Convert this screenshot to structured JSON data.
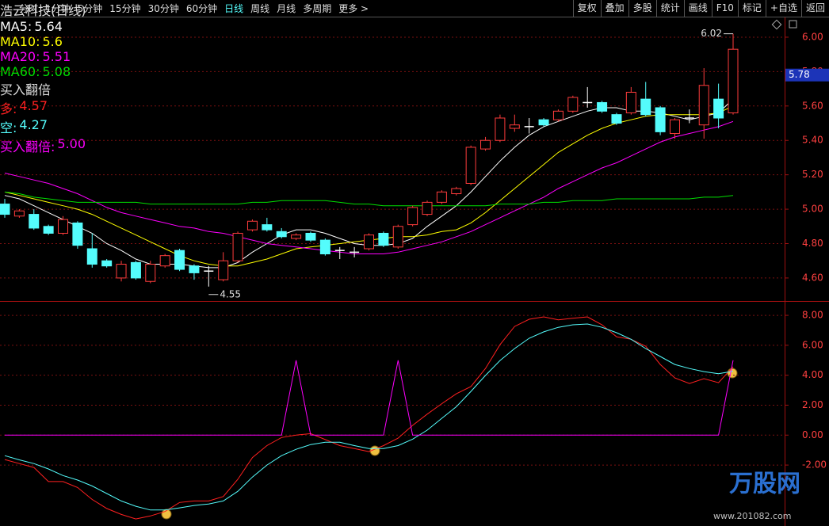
{
  "toolbar": {
    "left": [
      "分时",
      "1分钟",
      "5分钟",
      "15分钟",
      "30分钟",
      "60分钟",
      "日线",
      "周线",
      "月线",
      "多周期",
      "更多 >"
    ],
    "right": [
      "复权",
      "叠加",
      "多股",
      "统计",
      "画线",
      "F10",
      "标记",
      "+自选",
      "返回"
    ]
  },
  "chart_data": [
    {
      "type": "candlestick",
      "title": "浩云科技(日线)",
      "up_color": "#ff3c3c",
      "down_color": "#54fcfc",
      "flat_color": "#ffffff",
      "grid": true,
      "open": [
        5.03,
        4.96,
        4.97,
        4.9,
        4.86,
        4.92,
        4.77,
        4.7,
        4.6,
        4.69,
        4.58,
        4.67,
        4.76,
        4.67,
        4.64,
        4.59,
        4.7,
        4.88,
        4.91,
        4.87,
        4.83,
        4.86,
        4.82,
        4.76,
        4.75,
        4.77,
        4.86,
        4.78,
        4.91,
        4.97,
        5.04,
        5.09,
        5.15,
        5.35,
        5.4,
        5.47,
        5.48,
        5.52,
        5.52,
        5.57,
        5.62,
        5.62,
        5.55,
        5.56,
        5.64,
        5.59,
        5.44,
        5.53,
        5.49,
        5.64,
        5.56
      ],
      "high": [
        5.06,
        5.0,
        5.0,
        4.91,
        4.96,
        4.93,
        4.86,
        4.71,
        4.7,
        4.7,
        4.7,
        4.74,
        4.77,
        4.68,
        4.67,
        4.75,
        4.87,
        4.94,
        4.95,
        4.89,
        4.86,
        4.87,
        4.83,
        4.78,
        4.78,
        4.86,
        4.87,
        4.91,
        5.02,
        5.05,
        5.11,
        5.13,
        5.37,
        5.42,
        5.55,
        5.55,
        5.53,
        5.53,
        5.58,
        5.66,
        5.71,
        5.63,
        5.56,
        5.71,
        5.74,
        5.6,
        5.53,
        5.58,
        5.82,
        5.73,
        6.02
      ],
      "low": [
        4.95,
        4.95,
        4.88,
        4.85,
        4.85,
        4.77,
        4.66,
        4.66,
        4.58,
        4.59,
        4.57,
        4.66,
        4.64,
        4.59,
        4.55,
        4.58,
        4.69,
        4.87,
        4.87,
        4.83,
        4.82,
        4.81,
        4.73,
        4.71,
        4.72,
        4.76,
        4.78,
        4.77,
        4.9,
        4.96,
        5.03,
        5.08,
        5.14,
        5.34,
        5.39,
        5.45,
        5.44,
        5.48,
        5.51,
        5.56,
        5.59,
        5.56,
        5.49,
        5.55,
        5.54,
        5.43,
        5.41,
        5.5,
        5.41,
        5.47,
        5.55
      ],
      "close": [
        4.97,
        4.99,
        4.89,
        4.86,
        4.94,
        4.79,
        4.68,
        4.67,
        4.68,
        4.6,
        4.68,
        4.73,
        4.65,
        4.63,
        4.64,
        4.7,
        4.86,
        4.93,
        4.88,
        4.84,
        4.85,
        4.82,
        4.74,
        4.76,
        4.75,
        4.85,
        4.79,
        4.9,
        5.01,
        5.04,
        5.1,
        5.12,
        5.36,
        5.4,
        5.53,
        5.49,
        5.48,
        5.49,
        5.57,
        5.65,
        5.62,
        5.57,
        5.5,
        5.68,
        5.55,
        5.45,
        5.52,
        5.53,
        5.72,
        5.53,
        5.93
      ],
      "series": [
        {
          "name": "MA5:",
          "color": "#ffffff",
          "values": [
            5.08,
            5.06,
            5.02,
            4.98,
            4.94,
            4.9,
            4.86,
            4.8,
            4.76,
            4.71,
            4.68,
            4.68,
            4.68,
            4.67,
            4.66,
            4.66,
            4.69,
            4.75,
            4.8,
            4.85,
            4.88,
            4.88,
            4.86,
            4.83,
            4.8,
            4.79,
            4.79,
            4.8,
            4.83,
            4.9,
            4.96,
            5.02,
            5.1,
            5.19,
            5.28,
            5.36,
            5.43,
            5.48,
            5.51,
            5.54,
            5.57,
            5.59,
            5.59,
            5.57,
            5.57,
            5.56,
            5.54,
            5.52,
            5.54,
            5.56,
            5.64
          ]
        },
        {
          "name": "MA10:",
          "color": "#ffff00",
          "values": [
            5.1,
            5.08,
            5.06,
            5.04,
            5.02,
            5.0,
            4.97,
            4.93,
            4.89,
            4.85,
            4.81,
            4.77,
            4.73,
            4.7,
            4.68,
            4.67,
            4.67,
            4.69,
            4.71,
            4.74,
            4.77,
            4.78,
            4.79,
            4.8,
            4.81,
            4.82,
            4.83,
            4.84,
            4.84,
            4.85,
            4.87,
            4.88,
            4.92,
            4.98,
            5.05,
            5.12,
            5.19,
            5.26,
            5.33,
            5.38,
            5.43,
            5.47,
            5.5,
            5.52,
            5.54,
            5.55,
            5.55,
            5.55,
            5.55,
            5.56,
            5.6
          ]
        },
        {
          "name": "MA20:",
          "color": "#ff00ff",
          "values": [
            5.21,
            5.19,
            5.17,
            5.15,
            5.12,
            5.09,
            5.05,
            5.01,
            4.98,
            4.96,
            4.94,
            4.92,
            4.9,
            4.89,
            4.87,
            4.86,
            4.84,
            4.82,
            4.8,
            4.79,
            4.78,
            4.77,
            4.76,
            4.75,
            4.74,
            4.74,
            4.74,
            4.75,
            4.77,
            4.79,
            4.81,
            4.84,
            4.87,
            4.91,
            4.95,
            4.99,
            5.03,
            5.07,
            5.12,
            5.16,
            5.2,
            5.24,
            5.27,
            5.31,
            5.35,
            5.39,
            5.42,
            5.44,
            5.46,
            5.48,
            5.51
          ]
        },
        {
          "name": "MA60:",
          "color": "#00e000",
          "values": [
            5.1,
            5.09,
            5.07,
            5.06,
            5.05,
            5.04,
            5.04,
            5.04,
            5.04,
            5.04,
            5.03,
            5.03,
            5.03,
            5.03,
            5.03,
            5.03,
            5.03,
            5.04,
            5.04,
            5.05,
            5.05,
            5.05,
            5.05,
            5.04,
            5.03,
            5.03,
            5.02,
            5.02,
            5.02,
            5.02,
            5.02,
            5.02,
            5.02,
            5.02,
            5.03,
            5.03,
            5.03,
            5.04,
            5.04,
            5.05,
            5.05,
            5.05,
            5.06,
            5.06,
            5.06,
            5.06,
            5.06,
            5.06,
            5.07,
            5.07,
            5.08
          ]
        }
      ],
      "ylim": [
        4.466,
        6.115
      ],
      "yticks": [
        {
          "value": 4.6,
          "label": "4.60"
        },
        {
          "value": 4.8,
          "label": "4.80"
        },
        {
          "value": 5.0,
          "label": "5.00"
        },
        {
          "value": 5.2,
          "label": "5.20"
        },
        {
          "value": 5.4,
          "label": "5.40"
        },
        {
          "value": 5.6,
          "label": "5.60"
        },
        {
          "value": 5.8,
          "label": "5.80"
        },
        {
          "value": 6.0,
          "label": "6.00"
        }
      ],
      "price_marker": 5.78
    },
    {
      "type": "line",
      "title": "买入翻倍",
      "grid": true,
      "series": [
        {
          "name": "多:",
          "color": "#ff2020",
          "values": [
            -1.63,
            -1.9,
            -2.16,
            -3.1,
            -3.1,
            -3.5,
            -4.3,
            -4.9,
            -5.3,
            -5.6,
            -5.4,
            -5.1,
            -4.5,
            -4.4,
            -4.4,
            -4.1,
            -2.95,
            -1.5,
            -0.7,
            -0.16,
            0,
            0.1,
            -0.3,
            -0.7,
            -0.9,
            -1.1,
            -0.7,
            -0.2,
            0.65,
            1.4,
            2.1,
            2.76,
            3.24,
            4.45,
            6.04,
            7.26,
            7.74,
            7.9,
            7.7,
            7.8,
            7.9,
            7.37,
            6.57,
            6.4,
            5.94,
            4.72,
            3.82,
            3.45,
            3.77,
            3.5,
            4.57
          ]
        },
        {
          "name": "空:",
          "color": "#54fcfc",
          "values": [
            -1.37,
            -1.65,
            -1.9,
            -2.26,
            -2.7,
            -3.0,
            -3.4,
            -3.9,
            -4.4,
            -4.75,
            -5.0,
            -5.0,
            -4.86,
            -4.7,
            -4.6,
            -4.4,
            -3.75,
            -2.8,
            -2.0,
            -1.37,
            -0.95,
            -0.63,
            -0.48,
            -0.48,
            -0.7,
            -0.9,
            -0.9,
            -0.7,
            -0.27,
            0.33,
            1.12,
            1.9,
            2.92,
            3.98,
            4.98,
            5.78,
            6.47,
            6.9,
            7.2,
            7.37,
            7.42,
            7.2,
            6.84,
            6.4,
            5.78,
            5.25,
            4.72,
            4.45,
            4.24,
            4.1,
            4.27
          ]
        },
        {
          "name": "买入翻倍:",
          "color": "#ff00ff",
          "values": [
            0,
            0,
            0,
            0,
            0,
            0,
            0,
            0,
            0,
            0,
            0,
            0,
            0,
            0,
            0,
            0,
            0,
            0,
            0,
            0,
            5,
            0,
            0,
            0,
            0,
            0,
            0,
            5,
            0,
            0,
            0,
            0,
            0,
            0,
            0,
            0,
            0,
            0,
            0,
            0,
            0,
            0,
            0,
            0,
            0,
            0,
            0,
            0,
            0,
            0,
            5
          ],
          "value_labels": [
            null,
            null,
            null,
            null,
            null,
            null,
            null,
            null,
            null,
            null,
            null,
            null,
            null,
            null,
            null,
            null,
            null,
            null,
            null,
            null,
            null,
            null,
            null,
            null,
            null,
            null,
            null,
            null,
            null,
            null,
            null,
            null,
            null,
            null,
            null,
            null,
            null,
            null,
            null,
            null,
            null,
            null,
            null,
            null,
            null,
            null,
            null,
            null,
            null,
            null,
            "5.00"
          ]
        }
      ],
      "ylim": [
        -6.07,
        8.85
      ],
      "yticks": [
        {
          "value": -2,
          "label": "-2.00"
        },
        {
          "value": 0,
          "label": "0.00"
        },
        {
          "value": 2,
          "label": "2.00"
        },
        {
          "value": 4,
          "label": "4.00"
        },
        {
          "value": 6,
          "label": "6.00"
        },
        {
          "value": 8,
          "label": "8.00"
        }
      ]
    }
  ],
  "watermark": {
    "brand": "万股网",
    "url": "www.201082.com"
  }
}
